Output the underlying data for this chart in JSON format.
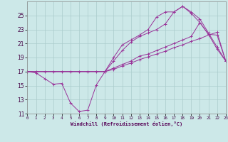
{
  "xlabel": "Windchill (Refroidissement éolien,°C)",
  "bg_color": "#cce8e8",
  "grid_color": "#aacccc",
  "line_color": "#993399",
  "ylim": [
    11,
    27
  ],
  "xlim": [
    0,
    23
  ],
  "yticks": [
    11,
    13,
    15,
    17,
    19,
    21,
    23,
    25
  ],
  "xticks": [
    0,
    1,
    2,
    3,
    4,
    5,
    6,
    7,
    8,
    9,
    10,
    11,
    12,
    13,
    14,
    15,
    16,
    17,
    18,
    19,
    20,
    21,
    22,
    23
  ],
  "lines": [
    {
      "x": [
        0,
        1,
        2,
        3,
        4,
        5,
        6,
        7,
        8,
        9,
        10,
        11,
        12,
        13,
        14,
        15,
        16,
        17,
        18,
        19,
        20,
        21,
        22,
        23
      ],
      "y": [
        17.0,
        16.8,
        16.0,
        15.2,
        15.3,
        12.5,
        11.3,
        11.5,
        15.1,
        17.0,
        17.5,
        18.0,
        18.5,
        19.2,
        19.5,
        20.0,
        20.5,
        21.0,
        21.5,
        22.0,
        24.0,
        22.3,
        22.2,
        18.5
      ]
    },
    {
      "x": [
        0,
        1,
        2,
        3,
        4,
        5,
        6,
        7,
        8,
        9,
        10,
        11,
        12,
        13,
        14,
        15,
        16,
        17,
        18,
        19,
        20,
        21,
        22,
        23
      ],
      "y": [
        17.0,
        17.0,
        17.0,
        17.0,
        17.0,
        17.0,
        17.0,
        17.0,
        17.0,
        17.0,
        17.3,
        17.8,
        18.2,
        18.7,
        19.1,
        19.5,
        19.9,
        20.4,
        20.8,
        21.3,
        21.7,
        22.2,
        22.6,
        18.5
      ]
    },
    {
      "x": [
        0,
        9,
        10,
        11,
        12,
        13,
        14,
        15,
        16,
        17,
        18,
        19,
        20,
        21,
        22,
        23
      ],
      "y": [
        17.0,
        17.0,
        18.5,
        20.0,
        21.2,
        22.0,
        22.5,
        23.0,
        23.8,
        25.5,
        26.3,
        25.3,
        24.0,
        22.3,
        20.2,
        18.5
      ]
    },
    {
      "x": [
        0,
        9,
        10,
        11,
        12,
        13,
        14,
        15,
        16,
        17,
        18,
        19,
        20,
        21,
        22,
        23
      ],
      "y": [
        17.0,
        17.0,
        19.0,
        20.8,
        21.5,
        22.2,
        23.0,
        24.8,
        25.5,
        25.5,
        26.3,
        25.5,
        24.5,
        22.5,
        20.5,
        18.5
      ]
    }
  ]
}
